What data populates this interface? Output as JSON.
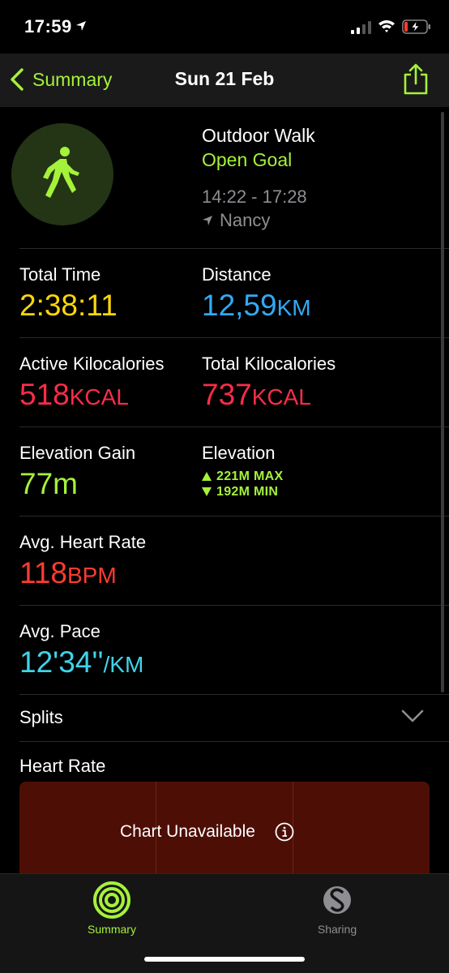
{
  "status_bar": {
    "time": "17:59"
  },
  "nav": {
    "back_label": "Summary",
    "title": "Sun 21 Feb"
  },
  "workout": {
    "type": "Outdoor Walk",
    "goal": "Open Goal",
    "time_range": "14:22 - 17:28",
    "location": "Nancy"
  },
  "metrics": {
    "total_time": {
      "label": "Total Time",
      "value": "2:38:11",
      "color": "#ffd60a"
    },
    "distance": {
      "label": "Distance",
      "value": "12,59",
      "unit": "KM",
      "color": "#32a9f5"
    },
    "active_kcal": {
      "label": "Active Kilocalories",
      "value": "518",
      "unit": "KCAL",
      "color": "#fa2d48"
    },
    "total_kcal": {
      "label": "Total Kilocalories",
      "value": "737",
      "unit": "KCAL",
      "color": "#fa2d48"
    },
    "elevation_gain": {
      "label": "Elevation Gain",
      "value": "77m",
      "color": "#a5f23a"
    },
    "elevation": {
      "label": "Elevation",
      "max": "221M MAX",
      "min": "192M MIN",
      "color": "#a5f23a"
    },
    "avg_heart_rate": {
      "label": "Avg. Heart Rate",
      "value": "118",
      "unit": "BPM",
      "color": "#ff3b30"
    },
    "avg_pace": {
      "label": "Avg. Pace",
      "value": "12'34''",
      "unit": "/KM",
      "color": "#40d4e8"
    }
  },
  "splits": {
    "label": "Splits"
  },
  "heart_rate": {
    "label": "Heart Rate",
    "chart_message": "Chart Unavailable"
  },
  "tab_bar": {
    "tabs": [
      {
        "label": "Summary",
        "icon": "activity-rings-icon",
        "active": true
      },
      {
        "label": "Sharing",
        "icon": "sharing-icon",
        "active": false
      }
    ]
  }
}
